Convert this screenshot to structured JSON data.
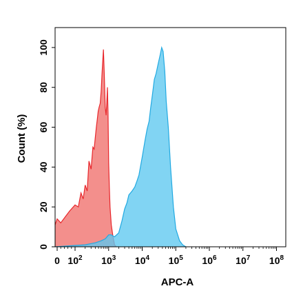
{
  "chart_data": {
    "type": "area",
    "title": "",
    "xlabel": "APC-A",
    "ylabel": "Count (%)",
    "x_scale": "biexponential",
    "xlim": [
      -30,
      100000000
    ],
    "ylim": [
      0,
      110
    ],
    "x_ticks": [
      {
        "value": 0,
        "base": "0",
        "exp": ""
      },
      {
        "value": 100,
        "base": "10",
        "exp": "2"
      },
      {
        "value": 1000,
        "base": "10",
        "exp": "3"
      },
      {
        "value": 10000,
        "base": "10",
        "exp": "4"
      },
      {
        "value": 100000,
        "base": "10",
        "exp": "5"
      },
      {
        "value": 1000000,
        "base": "10",
        "exp": "6"
      },
      {
        "value": 10000000,
        "base": "10",
        "exp": "7"
      },
      {
        "value": 100000000,
        "base": "10",
        "exp": "8"
      }
    ],
    "y_ticks": [
      0,
      20,
      40,
      60,
      80,
      100
    ],
    "series": [
      {
        "color": "#f0706b",
        "stroke": "#e8262b",
        "x": [
          -30,
          0,
          20,
          45,
          70,
          100,
          125,
          150,
          175,
          200,
          230,
          260,
          300,
          340,
          370,
          400,
          430,
          460,
          490,
          520,
          560,
          600,
          630,
          660,
          700,
          740,
          790,
          840,
          880,
          920,
          960,
          1000,
          1050,
          1100,
          1200,
          1350,
          1500,
          1700
        ],
        "y": [
          11,
          14,
          12,
          15,
          18,
          21,
          20,
          27,
          24,
          31,
          28,
          43,
          39,
          50,
          49,
          55,
          60,
          64,
          68,
          70,
          72,
          78,
          86,
          92,
          99,
          87,
          70,
          66,
          72,
          80,
          67,
          42,
          30,
          20,
          11,
          5,
          1,
          0
        ]
      },
      {
        "color": "#5ec8f0",
        "stroke": "#21a9e1",
        "x": [
          -30,
          200,
          400,
          600,
          800,
          1000,
          1200,
          1500,
          2000,
          2500,
          3000,
          3500,
          4000,
          5000,
          6000,
          7000,
          8000,
          10000,
          12000,
          14000,
          16000,
          18000,
          20000,
          23000,
          26000,
          30000,
          34000,
          38000,
          42000,
          47000,
          52000,
          60000,
          70000,
          85000,
          100000,
          130000,
          160000,
          200000
        ],
        "y": [
          0,
          1,
          2,
          3,
          4,
          6,
          6,
          5,
          7,
          13,
          19,
          22,
          26,
          28,
          30,
          33,
          36,
          45,
          53,
          59,
          63,
          70,
          76,
          84,
          87,
          92,
          96,
          100,
          98,
          88,
          73,
          60,
          40,
          20,
          9,
          3,
          1,
          0
        ]
      }
    ]
  }
}
